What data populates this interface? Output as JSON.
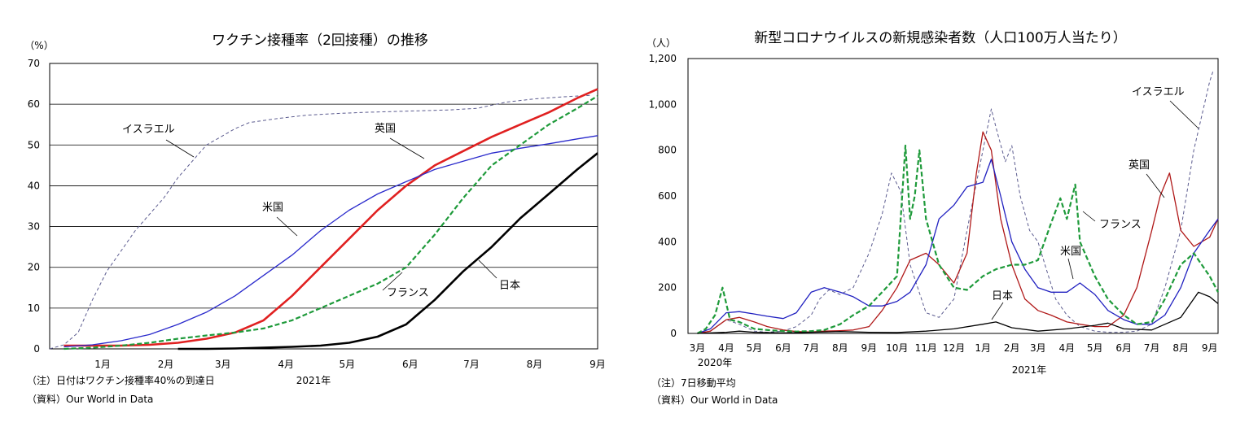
{
  "chart_data": [
    {
      "type": "line",
      "title": "ワクチン接種率（2回接種）の推移",
      "ylabel": "（%）",
      "ylim": [
        0,
        70
      ],
      "yticks": [
        "0",
        "10",
        "20",
        "30",
        "40",
        "50",
        "60",
        "70"
      ],
      "x_month_labels": [
        "1月",
        "2月",
        "3月",
        "4月",
        "5月",
        "6月",
        "7月",
        "8月",
        "9月"
      ],
      "x_year_label": "2021年",
      "note": "（注）日付はワクチン接種率40%の到達日",
      "source": "（資料）Our World in Data",
      "grid": true,
      "series": [
        {
          "name": "イスラエル",
          "color": "#5b5b8f",
          "dash": "dash-thin",
          "x": [
            "12/20",
            "12/27",
            "1/3",
            "1/10",
            "1/17",
            "1/24",
            "1/31",
            "2/7",
            "2/14",
            "2/21",
            "2/28",
            "3/7",
            "3/14",
            "3/21",
            "3/28",
            "4/11",
            "4/25",
            "5/9",
            "5/23",
            "6/6",
            "6/20",
            "7/4",
            "7/18",
            "8/1",
            "8/15",
            "8/29",
            "9/12"
          ],
          "y": [
            0,
            1,
            4,
            12,
            19,
            24,
            29,
            33,
            37,
            42,
            46,
            50,
            52,
            54,
            55.5,
            56.5,
            57.3,
            57.7,
            58,
            58.2,
            58.4,
            58.6,
            59,
            60.5,
            61.3,
            61.8,
            62.2
          ]
        },
        {
          "name": "英国",
          "color": "#e02020",
          "dash": "solid-thick",
          "x": [
            "12/27",
            "1/10",
            "1/24",
            "2/7",
            "2/21",
            "3/7",
            "3/21",
            "4/4",
            "4/18",
            "5/2",
            "5/16",
            "5/30",
            "6/13",
            "6/27",
            "7/11",
            "7/25",
            "8/8",
            "8/22",
            "9/5",
            "9/15"
          ],
          "y": [
            0.8,
            0.8,
            0.8,
            1,
            1.5,
            2.5,
            4,
            7,
            13,
            20,
            27,
            34,
            40,
            45,
            48.5,
            52,
            55,
            58,
            61.5,
            63.7
          ]
        },
        {
          "name": "米国",
          "color": "#2a2acc",
          "dash": "solid-thin",
          "x": [
            "12/27",
            "1/10",
            "1/24",
            "2/7",
            "2/21",
            "3/7",
            "3/21",
            "4/4",
            "4/18",
            "5/2",
            "5/16",
            "5/30",
            "6/13",
            "6/27",
            "7/11",
            "7/25",
            "8/8",
            "8/22",
            "9/5",
            "9/15"
          ],
          "y": [
            0.5,
            1,
            2,
            3.5,
            6,
            9,
            13,
            18,
            23,
            29,
            34,
            38,
            41,
            44,
            46,
            48,
            49.2,
            50.3,
            51.5,
            52.3
          ]
        },
        {
          "name": "フランス",
          "color": "#1e9a3a",
          "dash": "dash-thick",
          "x": [
            "12/27",
            "1/10",
            "1/24",
            "2/7",
            "2/21",
            "3/7",
            "3/21",
            "4/4",
            "4/18",
            "5/2",
            "5/16",
            "5/30",
            "6/13",
            "6/27",
            "7/11",
            "7/25",
            "8/8",
            "8/22",
            "9/5",
            "9/15"
          ],
          "y": [
            0,
            0.3,
            0.8,
            1.5,
            2.5,
            3.3,
            4,
            5,
            7,
            10,
            13,
            16,
            20,
            28,
            37,
            45,
            50,
            55,
            59,
            62
          ]
        },
        {
          "name": "日本",
          "color": "#000000",
          "dash": "solid-thick",
          "x": [
            "2/21",
            "3/7",
            "3/21",
            "4/4",
            "4/18",
            "5/2",
            "5/16",
            "5/30",
            "6/13",
            "6/27",
            "7/11",
            "7/25",
            "8/8",
            "8/22",
            "9/5",
            "9/15"
          ],
          "y": [
            0,
            0,
            0.1,
            0.3,
            0.5,
            0.8,
            1.5,
            3,
            6,
            12,
            19,
            25,
            32,
            38,
            44,
            48
          ]
        }
      ]
    },
    {
      "type": "line",
      "title": "新型コロナウイルスの新規感染者数（人口100万人当たり）",
      "ylabel": "（人）",
      "ylim": [
        0,
        1200
      ],
      "yticks": [
        "0",
        "200",
        "400",
        "600",
        "800",
        "1,000",
        "1,200"
      ],
      "x_month_labels": [
        "3月",
        "4月",
        "5月",
        "6月",
        "7月",
        "8月",
        "9月",
        "10月",
        "11月",
        "12月",
        "1月",
        "2月",
        "3月",
        "4月",
        "5月",
        "6月",
        "7月",
        "8月",
        "9月"
      ],
      "x_year_labels": [
        "2020年",
        "2021年"
      ],
      "note": "（注）7日移動平均",
      "source": "（資料）Our World in Data",
      "grid": false,
      "series": [
        {
          "name": "イスラエル",
          "color": "#5b5b8f",
          "dash": "dash-thin",
          "x": [
            "2020-03-01",
            "2020-03-15",
            "2020-04-01",
            "2020-04-15",
            "2020-05-01",
            "2020-05-15",
            "2020-06-01",
            "2020-06-15",
            "2020-07-01",
            "2020-07-10",
            "2020-07-20",
            "2020-08-01",
            "2020-08-15",
            "2020-09-01",
            "2020-09-15",
            "2020-09-25",
            "2020-10-05",
            "2020-10-15",
            "2020-11-01",
            "2020-11-15",
            "2020-12-01",
            "2020-12-15",
            "2021-01-01",
            "2021-01-10",
            "2021-01-15",
            "2021-01-25",
            "2021-02-01",
            "2021-02-10",
            "2021-02-20",
            "2021-03-01",
            "2021-03-10",
            "2021-03-20",
            "2021-04-01",
            "2021-04-15",
            "2021-05-01",
            "2021-05-15",
            "2021-06-01",
            "2021-06-15",
            "2021-07-01",
            "2021-07-15",
            "2021-08-01",
            "2021-08-15",
            "2021-09-01",
            "2021-09-05"
          ],
          "y": [
            0,
            10,
            60,
            40,
            10,
            5,
            10,
            30,
            80,
            150,
            190,
            170,
            200,
            350,
            520,
            700,
            620,
            300,
            90,
            70,
            150,
            450,
            800,
            980,
            900,
            750,
            820,
            600,
            450,
            400,
            280,
            150,
            80,
            30,
            10,
            5,
            5,
            10,
            40,
            200,
            450,
            800,
            1100,
            1150
          ]
        },
        {
          "name": "英国",
          "color": "#b01818",
          "dash": "solid-thin",
          "x": [
            "2020-03-01",
            "2020-03-15",
            "2020-04-01",
            "2020-04-15",
            "2020-05-01",
            "2020-05-15",
            "2020-06-01",
            "2020-06-15",
            "2020-07-01",
            "2020-07-15",
            "2020-08-01",
            "2020-08-15",
            "2020-09-01",
            "2020-09-15",
            "2020-10-01",
            "2020-10-15",
            "2020-11-01",
            "2020-11-15",
            "2020-12-01",
            "2020-12-15",
            "2020-12-25",
            "2021-01-01",
            "2021-01-10",
            "2021-01-20",
            "2021-02-01",
            "2021-02-15",
            "2021-03-01",
            "2021-03-15",
            "2021-04-01",
            "2021-04-15",
            "2021-05-01",
            "2021-05-15",
            "2021-06-01",
            "2021-06-15",
            "2021-07-01",
            "2021-07-10",
            "2021-07-20",
            "2021-08-01",
            "2021-08-15",
            "2021-09-01",
            "2021-09-10"
          ],
          "y": [
            0,
            10,
            60,
            70,
            50,
            30,
            15,
            8,
            6,
            10,
            12,
            15,
            30,
            100,
            200,
            320,
            350,
            300,
            220,
            350,
            700,
            880,
            800,
            500,
            300,
            150,
            100,
            80,
            50,
            40,
            30,
            30,
            80,
            200,
            450,
            600,
            700,
            450,
            380,
            420,
            500
          ]
        },
        {
          "name": "米国",
          "color": "#2020c0",
          "dash": "solid-thin",
          "x": [
            "2020-03-01",
            "2020-03-15",
            "2020-04-01",
            "2020-04-15",
            "2020-05-01",
            "2020-05-15",
            "2020-06-01",
            "2020-06-15",
            "2020-07-01",
            "2020-07-15",
            "2020-08-01",
            "2020-08-15",
            "2020-09-01",
            "2020-09-15",
            "2020-10-01",
            "2020-10-15",
            "2020-11-01",
            "2020-11-15",
            "2020-12-01",
            "2020-12-15",
            "2021-01-01",
            "2021-01-10",
            "2021-01-20",
            "2021-02-01",
            "2021-02-15",
            "2021-03-01",
            "2021-03-15",
            "2021-04-01",
            "2021-04-15",
            "2021-05-01",
            "2021-05-15",
            "2021-06-01",
            "2021-06-15",
            "2021-07-01",
            "2021-07-15",
            "2021-08-01",
            "2021-08-15",
            "2021-09-01",
            "2021-09-10"
          ],
          "y": [
            0,
            20,
            90,
            95,
            85,
            75,
            65,
            90,
            180,
            200,
            180,
            160,
            120,
            120,
            140,
            180,
            300,
            500,
            560,
            640,
            660,
            760,
            600,
            400,
            280,
            200,
            180,
            180,
            220,
            170,
            100,
            60,
            40,
            40,
            80,
            200,
            350,
            450,
            500
          ]
        },
        {
          "name": "フランス",
          "color": "#1e9a3a",
          "dash": "dash-thick",
          "x": [
            "2020-03-01",
            "2020-03-10",
            "2020-03-20",
            "2020-03-28",
            "2020-04-05",
            "2020-04-15",
            "2020-05-01",
            "2020-05-15",
            "2020-06-01",
            "2020-06-15",
            "2020-07-01",
            "2020-07-15",
            "2020-08-01",
            "2020-08-15",
            "2020-09-01",
            "2020-09-15",
            "2020-10-01",
            "2020-10-10",
            "2020-10-15",
            "2020-10-20",
            "2020-10-25",
            "2020-11-01",
            "2020-11-15",
            "2020-12-01",
            "2020-12-15",
            "2021-01-01",
            "2021-01-15",
            "2021-02-01",
            "2021-02-15",
            "2021-03-01",
            "2021-03-15",
            "2021-03-25",
            "2021-04-01",
            "2021-04-10",
            "2021-04-15",
            "2021-05-01",
            "2021-05-15",
            "2021-06-01",
            "2021-06-15",
            "2021-07-01",
            "2021-07-15",
            "2021-08-01",
            "2021-08-15",
            "2021-09-01",
            "2021-09-10"
          ],
          "y": [
            0,
            20,
            80,
            200,
            60,
            50,
            20,
            15,
            10,
            8,
            10,
            15,
            40,
            80,
            120,
            180,
            250,
            820,
            500,
            600,
            800,
            500,
            300,
            200,
            190,
            250,
            280,
            300,
            300,
            320,
            480,
            590,
            500,
            650,
            400,
            250,
            150,
            80,
            40,
            50,
            150,
            300,
            350,
            250,
            180
          ]
        },
        {
          "name": "日本",
          "color": "#000000",
          "dash": "solid-thin",
          "x": [
            "2020-03-01",
            "2020-04-01",
            "2020-04-15",
            "2020-05-01",
            "2020-06-01",
            "2020-07-01",
            "2020-08-01",
            "2020-09-01",
            "2020-10-01",
            "2020-11-01",
            "2020-12-01",
            "2021-01-01",
            "2021-01-15",
            "2021-02-01",
            "2021-03-01",
            "2021-04-01",
            "2021-05-01",
            "2021-05-15",
            "2021-06-01",
            "2021-07-01",
            "2021-08-01",
            "2021-08-20",
            "2021-09-01",
            "2021-09-10"
          ],
          "y": [
            0,
            5,
            10,
            5,
            2,
            5,
            8,
            5,
            4,
            10,
            20,
            40,
            50,
            25,
            10,
            20,
            35,
            45,
            20,
            15,
            70,
            180,
            160,
            130
          ]
        }
      ]
    }
  ],
  "labels": {
    "left": {
      "israel": "イスラエル",
      "uk": "英国",
      "us": "米国",
      "france": "フランス",
      "japan": "日本"
    },
    "right": {
      "israel": "イスラエル",
      "uk": "英国",
      "us": "米国",
      "france": "フランス",
      "japan": "日本"
    }
  }
}
